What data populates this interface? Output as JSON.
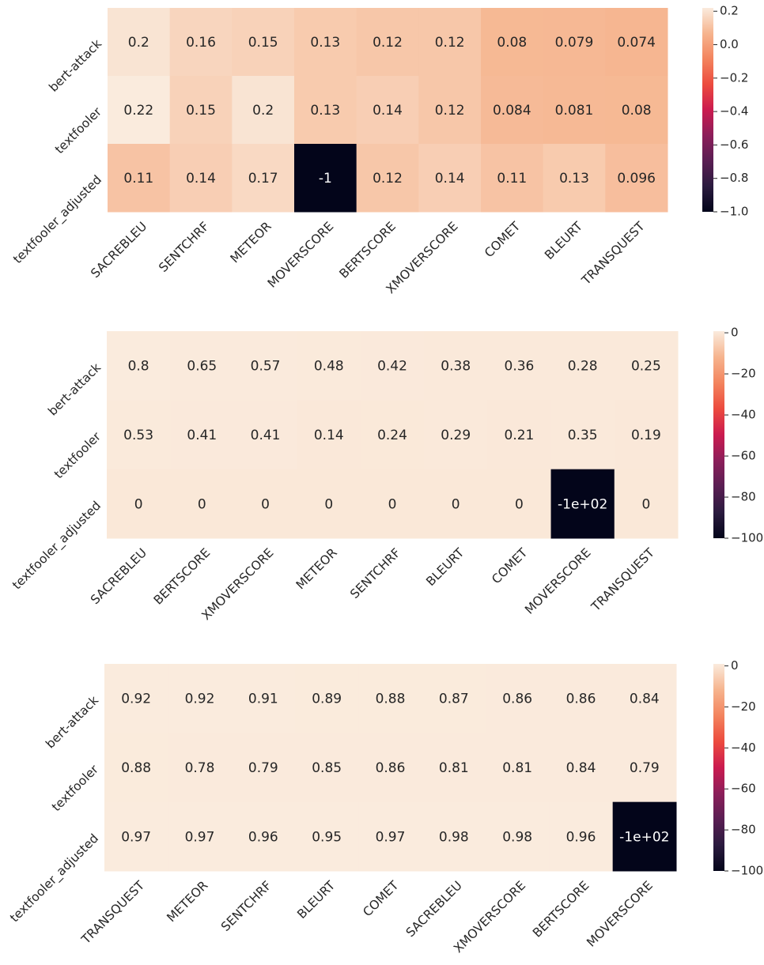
{
  "chart_data": [
    {
      "type": "heatmap",
      "rows": [
        "bert-attack",
        "textfooler",
        "textfooler_adjusted"
      ],
      "columns": [
        "SACREBLEU",
        "SENTCHRF",
        "METEOR",
        "MOVERSCORE",
        "BERTSCORE",
        "XMOVERSCORE",
        "COMET",
        "BLEURT",
        "TRANSQUEST"
      ],
      "values": [
        [
          0.2,
          0.16,
          0.15,
          0.13,
          0.12,
          0.12,
          0.08,
          0.079,
          0.074
        ],
        [
          0.22,
          0.15,
          0.2,
          0.13,
          0.14,
          0.12,
          0.084,
          0.081,
          0.08
        ],
        [
          0.11,
          0.14,
          0.17,
          -1,
          0.12,
          0.14,
          0.11,
          0.13,
          0.096
        ]
      ],
      "annotations": [
        [
          "0.2",
          "0.16",
          "0.15",
          "0.13",
          "0.12",
          "0.12",
          "0.08",
          "0.079",
          "0.074"
        ],
        [
          "0.22",
          "0.15",
          "0.2",
          "0.13",
          "0.14",
          "0.12",
          "0.084",
          "0.081",
          "0.08"
        ],
        [
          "0.11",
          "0.14",
          "0.17",
          "-1",
          "0.12",
          "0.14",
          "0.11",
          "0.13",
          "0.096"
        ]
      ],
      "colorbar": {
        "vmin": -1.0,
        "vmax": 0.22,
        "ticks": [
          0.2,
          0.0,
          -0.2,
          -0.4,
          -0.6,
          -0.8,
          -1.0
        ],
        "tick_labels": [
          "0.2",
          "0.0",
          "−0.2",
          "−0.4",
          "−0.6",
          "−0.8",
          "−1.0"
        ]
      },
      "colormap": "rocket"
    },
    {
      "type": "heatmap",
      "rows": [
        "bert-attack",
        "textfooler",
        "textfooler_adjusted"
      ],
      "columns": [
        "SACREBLEU",
        "BERTSCORE",
        "XMOVERSCORE",
        "METEOR",
        "SENTCHRF",
        "BLEURT",
        "COMET",
        "MOVERSCORE",
        "TRANSQUEST"
      ],
      "values": [
        [
          0.8,
          0.65,
          0.57,
          0.48,
          0.42,
          0.38,
          0.36,
          0.28,
          0.25
        ],
        [
          0.53,
          0.41,
          0.41,
          0.14,
          0.24,
          0.29,
          0.21,
          0.35,
          0.19
        ],
        [
          0,
          0,
          0,
          0,
          0,
          0,
          0,
          -100,
          0
        ]
      ],
      "annotations": [
        [
          "0.8",
          "0.65",
          "0.57",
          "0.48",
          "0.42",
          "0.38",
          "0.36",
          "0.28",
          "0.25"
        ],
        [
          "0.53",
          "0.41",
          "0.41",
          "0.14",
          "0.24",
          "0.29",
          "0.21",
          "0.35",
          "0.19"
        ],
        [
          "0",
          "0",
          "0",
          "0",
          "0",
          "0",
          "0",
          "-1e+02",
          "0"
        ]
      ],
      "colorbar": {
        "vmin": -100,
        "vmax": 0.8,
        "ticks": [
          0,
          -20,
          -40,
          -60,
          -80,
          -100
        ],
        "tick_labels": [
          "0",
          "−20",
          "−40",
          "−60",
          "−80",
          "−100"
        ]
      },
      "colormap": "rocket"
    },
    {
      "type": "heatmap",
      "rows": [
        "bert-attack",
        "textfooler",
        "textfooler_adjusted"
      ],
      "columns": [
        "TRANSQUEST",
        "METEOR",
        "SENTCHRF",
        "BLEURT",
        "COMET",
        "SACREBLEU",
        "XMOVERSCORE",
        "BERTSCORE",
        "MOVERSCORE"
      ],
      "values": [
        [
          0.92,
          0.92,
          0.91,
          0.89,
          0.88,
          0.87,
          0.86,
          0.86,
          0.84
        ],
        [
          0.88,
          0.78,
          0.79,
          0.85,
          0.86,
          0.81,
          0.81,
          0.84,
          0.79
        ],
        [
          0.97,
          0.97,
          0.96,
          0.95,
          0.97,
          0.98,
          0.98,
          0.96,
          -100
        ]
      ],
      "annotations": [
        [
          "0.92",
          "0.92",
          "0.91",
          "0.89",
          "0.88",
          "0.87",
          "0.86",
          "0.86",
          "0.84"
        ],
        [
          "0.88",
          "0.78",
          "0.79",
          "0.85",
          "0.86",
          "0.81",
          "0.81",
          "0.84",
          "0.79"
        ],
        [
          "0.97",
          "0.97",
          "0.96",
          "0.95",
          "0.97",
          "0.98",
          "0.98",
          "0.96",
          "-1e+02"
        ]
      ],
      "colorbar": {
        "vmin": -100,
        "vmax": 0.98,
        "ticks": [
          0,
          -20,
          -40,
          -60,
          -80,
          -100
        ],
        "tick_labels": [
          "0",
          "−20",
          "−40",
          "−60",
          "−80",
          "−100"
        ]
      },
      "colormap": "rocket"
    }
  ]
}
